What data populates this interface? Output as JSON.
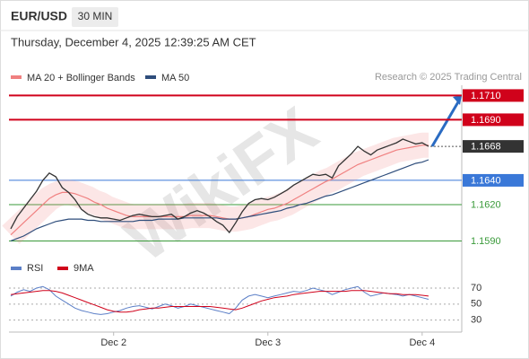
{
  "header": {
    "symbol": "EUR/USD",
    "timeframe": "30 MIN",
    "timestamp": "Thursday, December 4, 2025 12:39:25 AM CET"
  },
  "chart_data": {
    "type": "line",
    "source": "Research © 2025 Trading Central",
    "watermark": "WikiFX",
    "categories": [
      null,
      null,
      null,
      null,
      null,
      null,
      null,
      null,
      null,
      null,
      null,
      null,
      null,
      null,
      null,
      null,
      "Dec 2",
      null,
      null,
      null,
      null,
      null,
      null,
      null,
      null,
      null,
      null,
      null,
      null,
      null,
      null,
      null,
      null,
      null,
      null,
      null,
      null,
      null,
      null,
      null,
      "Dec 3",
      null,
      null,
      null,
      null,
      null,
      null,
      null,
      null,
      null,
      null,
      null,
      null,
      null,
      null,
      null,
      null,
      null,
      null,
      null,
      null,
      null,
      null,
      null,
      "Dec 4",
      null
    ],
    "ylim": [
      1.1577,
      1.1774
    ],
    "price": [
      1.16,
      1.161,
      1.1617,
      1.1624,
      1.1631,
      1.164,
      1.1646,
      1.1643,
      1.1634,
      1.163,
      1.1624,
      1.1616,
      1.1612,
      1.161,
      1.1609,
      1.1609,
      1.1608,
      1.1607,
      1.1609,
      1.1611,
      1.1612,
      1.1611,
      1.161,
      1.161,
      1.1611,
      1.1612,
      1.1608,
      1.161,
      1.1613,
      1.1615,
      1.1613,
      1.161,
      1.1606,
      1.1603,
      1.1597,
      1.1605,
      1.1614,
      1.1621,
      1.1624,
      1.1625,
      1.1624,
      1.1626,
      1.1629,
      1.1632,
      1.1636,
      1.1639,
      1.1642,
      1.1645,
      1.1644,
      1.1645,
      1.1642,
      1.1652,
      1.1657,
      1.1662,
      1.1668,
      1.1664,
      1.1661,
      1.1665,
      1.1667,
      1.1669,
      1.1671,
      1.1674,
      1.1672,
      1.167,
      1.1671,
      1.1668
    ],
    "price_color": "#333333",
    "series": [
      {
        "name": "MA 20 + Bollinger Bands",
        "color": "#f08080",
        "values": [
          1.1595,
          1.16,
          1.1605,
          1.161,
          1.1615,
          1.162,
          1.1625,
          1.1628,
          1.163,
          1.163,
          1.1629,
          1.1627,
          1.1625,
          1.1622,
          1.162,
          1.1617,
          1.1615,
          1.1613,
          1.1611,
          1.161,
          1.161,
          1.161,
          1.161,
          1.161,
          1.161,
          1.161,
          1.161,
          1.161,
          1.1611,
          1.1611,
          1.1611,
          1.1611,
          1.161,
          1.1609,
          1.1608,
          1.1608,
          1.1609,
          1.161,
          1.1612,
          1.1614,
          1.1616,
          1.1617,
          1.1619,
          1.1621,
          1.1624,
          1.1627,
          1.163,
          1.1633,
          1.1636,
          1.1639,
          1.1641,
          1.1644,
          1.1647,
          1.165,
          1.1653,
          1.1655,
          1.1657,
          1.1659,
          1.1661,
          1.1663,
          1.1665,
          1.1666,
          1.1667,
          1.1668,
          1.1669,
          1.1669
        ]
      },
      {
        "name": "MA 50",
        "color": "#2e4d7b",
        "values": [
          1.159,
          1.1592,
          1.1594,
          1.1597,
          1.16,
          1.1602,
          1.1604,
          1.1606,
          1.1607,
          1.1608,
          1.1608,
          1.1608,
          1.1607,
          1.1607,
          1.1606,
          1.1606,
          1.1606,
          1.1606,
          1.1606,
          1.1606,
          1.1607,
          1.1607,
          1.1607,
          1.1608,
          1.1608,
          1.1608,
          1.1608,
          1.1609,
          1.1609,
          1.1609,
          1.1609,
          1.1609,
          1.1609,
          1.1608,
          1.1608,
          1.1608,
          1.1609,
          1.161,
          1.1611,
          1.1612,
          1.1613,
          1.1614,
          1.1615,
          1.1617,
          1.1618,
          1.162,
          1.1621,
          1.1623,
          1.1625,
          1.1627,
          1.1628,
          1.163,
          1.1632,
          1.1634,
          1.1636,
          1.1638,
          1.164,
          1.1642,
          1.1644,
          1.1646,
          1.1648,
          1.165,
          1.1652,
          1.1654,
          1.1655,
          1.1657
        ]
      }
    ],
    "levels": [
      {
        "value": 1.171,
        "label": "1.1710",
        "color": "#d0021b",
        "boxed": true,
        "line": "solid"
      },
      {
        "value": 1.169,
        "label": "1.1690",
        "color": "#d0021b",
        "boxed": true,
        "line": "solid"
      },
      {
        "value": 1.1668,
        "label": "1.1668",
        "color": "#333333",
        "boxed": true,
        "line": "dotted"
      },
      {
        "value": 1.164,
        "label": "1.1640",
        "color": "#3a78d8",
        "boxed": true,
        "line": "solid"
      },
      {
        "value": 1.162,
        "label": "1.1620",
        "color": "#3a9a3a",
        "boxed": false,
        "line": "solid"
      },
      {
        "value": 1.159,
        "label": "1.1590",
        "color": "#3a9a3a",
        "boxed": false,
        "line": "solid"
      }
    ],
    "rsi": {
      "ylim": [
        15,
        97
      ],
      "yticks": [
        30,
        50,
        70
      ],
      "grid": true,
      "series": [
        {
          "name": "RSI",
          "color": "#5b7fc7",
          "values": [
            60,
            65,
            68,
            66,
            70,
            72,
            68,
            60,
            55,
            50,
            45,
            42,
            40,
            38,
            37,
            38,
            40,
            42,
            45,
            47,
            48,
            46,
            44,
            47,
            50,
            48,
            45,
            47,
            50,
            48,
            46,
            44,
            42,
            40,
            38,
            45,
            55,
            60,
            62,
            60,
            58,
            60,
            62,
            64,
            66,
            65,
            67,
            70,
            68,
            66,
            62,
            65,
            68,
            70,
            72,
            65,
            60,
            62,
            64,
            63,
            62,
            60,
            62,
            60,
            58,
            56
          ]
        },
        {
          "name": "9MA",
          "color": "#d0021b",
          "values": [
            62,
            63,
            64,
            65,
            66,
            67,
            67,
            66,
            64,
            61,
            58,
            55,
            52,
            49,
            46,
            43,
            41,
            40,
            40,
            41,
            43,
            44,
            45,
            45,
            46,
            47,
            47,
            47,
            47,
            47,
            47,
            47,
            46,
            45,
            44,
            43,
            45,
            48,
            51,
            54,
            56,
            58,
            59,
            60,
            62,
            63,
            64,
            65,
            66,
            66,
            66,
            66,
            66,
            67,
            67,
            67,
            66,
            65,
            64,
            63,
            63,
            62,
            62,
            62,
            61,
            60
          ]
        }
      ]
    }
  }
}
